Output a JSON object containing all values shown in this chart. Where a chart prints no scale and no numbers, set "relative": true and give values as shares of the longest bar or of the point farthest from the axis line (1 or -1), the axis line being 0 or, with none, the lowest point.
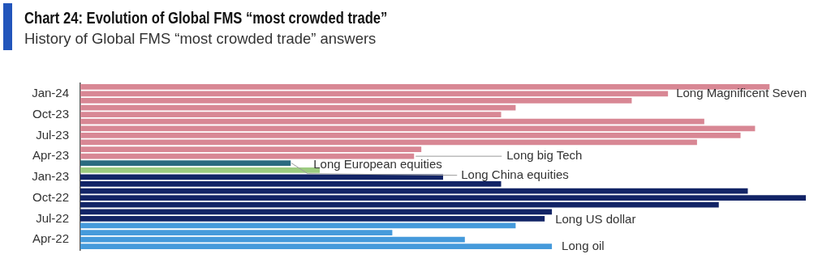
{
  "chart_data": {
    "type": "bar",
    "orientation": "horizontal",
    "relative": true,
    "title": "Chart 24: Evolution of Global FMS “most crowded trade”",
    "subtitle": "History of Global FMS “most crowded trade” answers",
    "categories": [
      null,
      "Jan-24",
      null,
      null,
      "Oct-23",
      null,
      null,
      "Jul-23",
      null,
      null,
      "Apr-23",
      null,
      null,
      "Jan-23",
      null,
      null,
      "Oct-22",
      null,
      null,
      "Jul-22",
      null,
      null,
      "Apr-22",
      null
    ],
    "values": [
      0.95,
      0.81,
      0.76,
      0.6,
      0.58,
      0.86,
      0.93,
      0.91,
      0.85,
      0.47,
      0.46,
      0.29,
      0.33,
      0.5,
      0.58,
      0.92,
      1,
      0.88,
      0.65,
      0.64,
      0.6,
      0.43,
      0.53,
      0.65
    ],
    "colors": [
      "#d88794",
      "#d88794",
      "#d88794",
      "#d88794",
      "#d88794",
      "#d88794",
      "#d88794",
      "#d88794",
      "#d88794",
      "#d88794",
      "#d88794",
      "#2b6b80",
      "#9ccb80",
      "#122466",
      "#122466",
      "#122466",
      "#122466",
      "#122466",
      "#122466",
      "#122466",
      "#459adb",
      "#459adb",
      "#459adb",
      "#459adb"
    ],
    "annotations": [
      "Long Magnificent Seven",
      "Long big Tech",
      "Long European equities",
      "Long China equities",
      "Long US dollar",
      "Long oil"
    ]
  }
}
